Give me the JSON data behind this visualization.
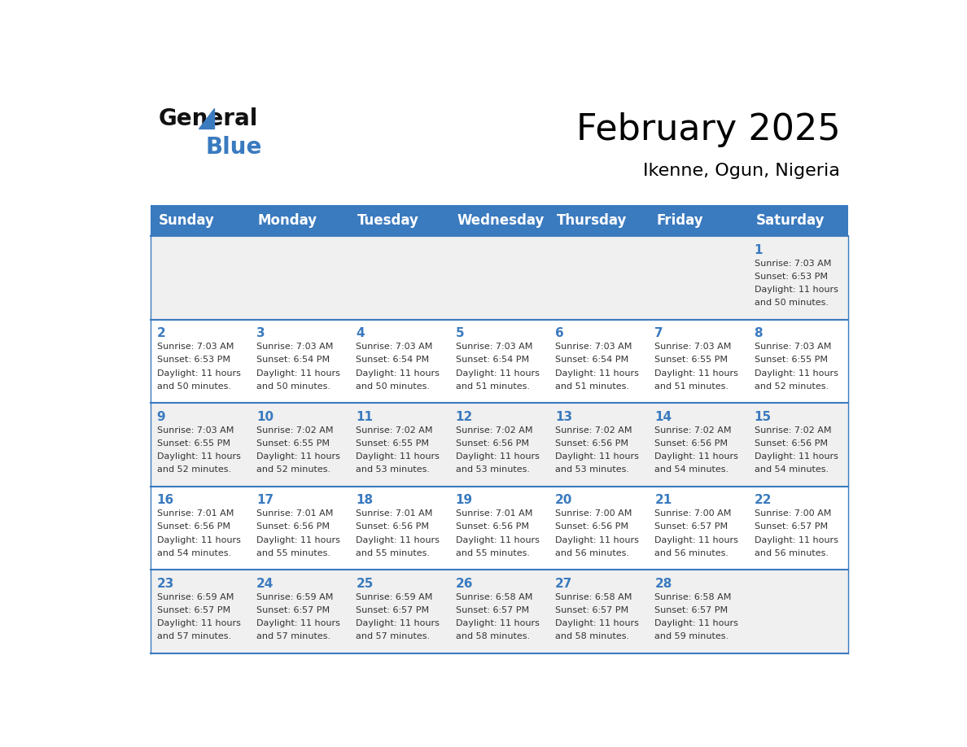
{
  "title": "February 2025",
  "subtitle": "Ikenne, Ogun, Nigeria",
  "days_of_week": [
    "Sunday",
    "Monday",
    "Tuesday",
    "Wednesday",
    "Thursday",
    "Friday",
    "Saturday"
  ],
  "header_bg": "#3a7abf",
  "header_text": "#ffffff",
  "row_bg_light": "#f0f0f0",
  "row_bg_white": "#ffffff",
  "border_color": "#3a7abf",
  "day_number_color": "#3a7abf",
  "cell_text_color": "#333333",
  "calendar_data": [
    [
      null,
      null,
      null,
      null,
      null,
      null,
      {
        "day": 1,
        "sunrise": "7:03 AM",
        "sunset": "6:53 PM",
        "daylight": "11 hours and 50 minutes."
      }
    ],
    [
      {
        "day": 2,
        "sunrise": "7:03 AM",
        "sunset": "6:53 PM",
        "daylight": "11 hours and 50 minutes."
      },
      {
        "day": 3,
        "sunrise": "7:03 AM",
        "sunset": "6:54 PM",
        "daylight": "11 hours and 50 minutes."
      },
      {
        "day": 4,
        "sunrise": "7:03 AM",
        "sunset": "6:54 PM",
        "daylight": "11 hours and 50 minutes."
      },
      {
        "day": 5,
        "sunrise": "7:03 AM",
        "sunset": "6:54 PM",
        "daylight": "11 hours and 51 minutes."
      },
      {
        "day": 6,
        "sunrise": "7:03 AM",
        "sunset": "6:54 PM",
        "daylight": "11 hours and 51 minutes."
      },
      {
        "day": 7,
        "sunrise": "7:03 AM",
        "sunset": "6:55 PM",
        "daylight": "11 hours and 51 minutes."
      },
      {
        "day": 8,
        "sunrise": "7:03 AM",
        "sunset": "6:55 PM",
        "daylight": "11 hours and 52 minutes."
      }
    ],
    [
      {
        "day": 9,
        "sunrise": "7:03 AM",
        "sunset": "6:55 PM",
        "daylight": "11 hours and 52 minutes."
      },
      {
        "day": 10,
        "sunrise": "7:02 AM",
        "sunset": "6:55 PM",
        "daylight": "11 hours and 52 minutes."
      },
      {
        "day": 11,
        "sunrise": "7:02 AM",
        "sunset": "6:55 PM",
        "daylight": "11 hours and 53 minutes."
      },
      {
        "day": 12,
        "sunrise": "7:02 AM",
        "sunset": "6:56 PM",
        "daylight": "11 hours and 53 minutes."
      },
      {
        "day": 13,
        "sunrise": "7:02 AM",
        "sunset": "6:56 PM",
        "daylight": "11 hours and 53 minutes."
      },
      {
        "day": 14,
        "sunrise": "7:02 AM",
        "sunset": "6:56 PM",
        "daylight": "11 hours and 54 minutes."
      },
      {
        "day": 15,
        "sunrise": "7:02 AM",
        "sunset": "6:56 PM",
        "daylight": "11 hours and 54 minutes."
      }
    ],
    [
      {
        "day": 16,
        "sunrise": "7:01 AM",
        "sunset": "6:56 PM",
        "daylight": "11 hours and 54 minutes."
      },
      {
        "day": 17,
        "sunrise": "7:01 AM",
        "sunset": "6:56 PM",
        "daylight": "11 hours and 55 minutes."
      },
      {
        "day": 18,
        "sunrise": "7:01 AM",
        "sunset": "6:56 PM",
        "daylight": "11 hours and 55 minutes."
      },
      {
        "day": 19,
        "sunrise": "7:01 AM",
        "sunset": "6:56 PM",
        "daylight": "11 hours and 55 minutes."
      },
      {
        "day": 20,
        "sunrise": "7:00 AM",
        "sunset": "6:56 PM",
        "daylight": "11 hours and 56 minutes."
      },
      {
        "day": 21,
        "sunrise": "7:00 AM",
        "sunset": "6:57 PM",
        "daylight": "11 hours and 56 minutes."
      },
      {
        "day": 22,
        "sunrise": "7:00 AM",
        "sunset": "6:57 PM",
        "daylight": "11 hours and 56 minutes."
      }
    ],
    [
      {
        "day": 23,
        "sunrise": "6:59 AM",
        "sunset": "6:57 PM",
        "daylight": "11 hours and 57 minutes."
      },
      {
        "day": 24,
        "sunrise": "6:59 AM",
        "sunset": "6:57 PM",
        "daylight": "11 hours and 57 minutes."
      },
      {
        "day": 25,
        "sunrise": "6:59 AM",
        "sunset": "6:57 PM",
        "daylight": "11 hours and 57 minutes."
      },
      {
        "day": 26,
        "sunrise": "6:58 AM",
        "sunset": "6:57 PM",
        "daylight": "11 hours and 58 minutes."
      },
      {
        "day": 27,
        "sunrise": "6:58 AM",
        "sunset": "6:57 PM",
        "daylight": "11 hours and 58 minutes."
      },
      {
        "day": 28,
        "sunrise": "6:58 AM",
        "sunset": "6:57 PM",
        "daylight": "11 hours and 59 minutes."
      },
      null
    ]
  ],
  "logo_text_general": "General",
  "logo_text_blue": "Blue",
  "logo_color_general": "#111111",
  "logo_color_blue": "#3a7abf"
}
